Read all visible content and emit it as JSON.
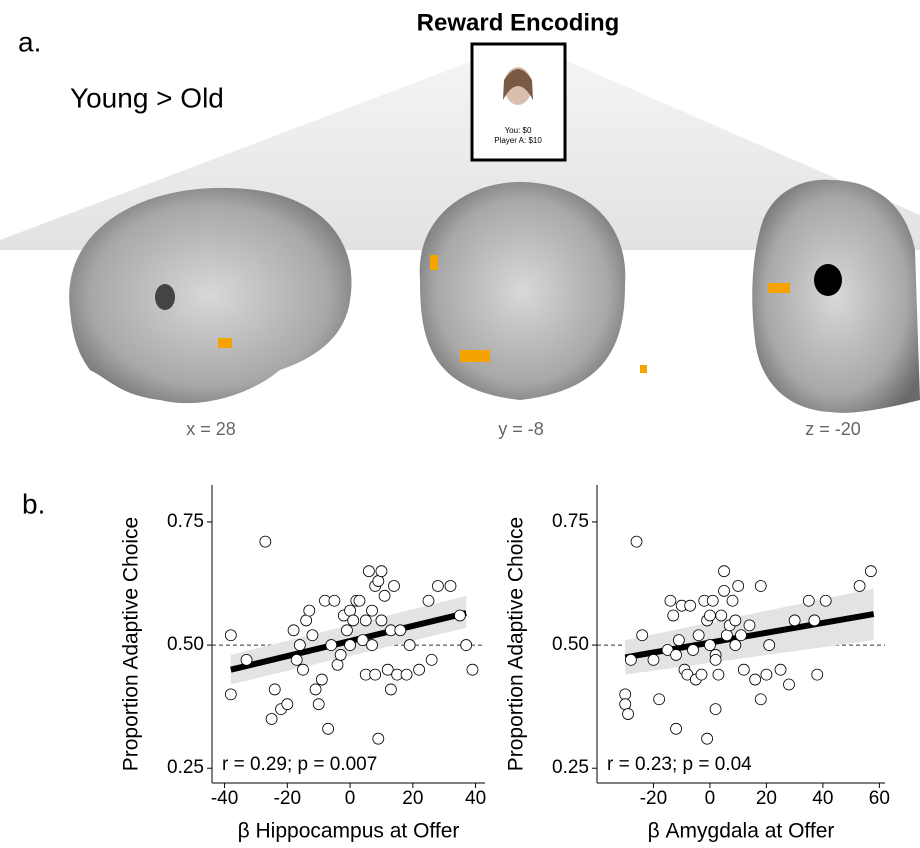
{
  "panel_a": {
    "label": "a.",
    "title": "Reward Encoding",
    "contrast": "Young > Old",
    "stimulus": {
      "line1": "You: $0",
      "line2": "Player A: $10"
    },
    "slices": [
      "x = 28",
      "y = -8",
      "z = -20"
    ]
  },
  "panel_b": {
    "label": "b."
  },
  "chart_data": [
    {
      "type": "scatter",
      "x_label": "β Hippocampus at Offer",
      "y_label": "Proportion Adaptive Choice",
      "annotation": "r = 0.29; p = 0.007",
      "x": [
        -38,
        -38,
        -33,
        -27,
        -25,
        -24,
        -22,
        -20,
        -18,
        -17,
        -16,
        -15,
        -14,
        -13,
        -12,
        -11,
        -10,
        -9,
        -8,
        -7,
        -6,
        -5,
        -4,
        -3,
        -2,
        -1,
        0,
        0,
        1,
        2,
        3,
        4,
        5,
        5,
        6,
        7,
        7,
        8,
        8,
        9,
        9,
        10,
        10,
        11,
        12,
        13,
        13,
        14,
        15,
        16,
        18,
        19,
        22,
        25,
        26,
        28,
        32,
        35,
        37,
        39
      ],
      "y": [
        0.52,
        0.4,
        0.47,
        0.71,
        0.35,
        0.41,
        0.37,
        0.38,
        0.53,
        0.47,
        0.5,
        0.45,
        0.55,
        0.57,
        0.52,
        0.41,
        0.38,
        0.43,
        0.59,
        0.33,
        0.5,
        0.59,
        0.46,
        0.48,
        0.56,
        0.53,
        0.5,
        0.57,
        0.55,
        0.59,
        0.59,
        0.51,
        0.55,
        0.44,
        0.65,
        0.57,
        0.5,
        0.62,
        0.44,
        0.31,
        0.63,
        0.65,
        0.55,
        0.6,
        0.45,
        0.41,
        0.53,
        0.62,
        0.44,
        0.53,
        0.44,
        0.5,
        0.45,
        0.59,
        0.47,
        0.62,
        0.62,
        0.56,
        0.5,
        0.45
      ],
      "fit": {
        "x": [
          -38,
          37
        ],
        "y": [
          0.45,
          0.565
        ],
        "ci_lower": [
          0.42,
          0.535
        ],
        "ci_upper": [
          0.48,
          0.6
        ]
      },
      "hline": 0.5,
      "xlim": [
        -44,
        43
      ],
      "ylim": [
        0.22,
        0.825
      ],
      "xticks": [
        -40,
        -20,
        0,
        20,
        40
      ],
      "yticks": [
        {
          "value": 0.25,
          "label": "0.25"
        },
        {
          "value": 0.5,
          "label": "0.50"
        },
        {
          "value": 0.75,
          "label": "0.75"
        }
      ]
    },
    {
      "type": "scatter",
      "x_label": "β Amygdala at Offer",
      "y_label": "Proportion Adaptive Choice",
      "annotation": "r = 0.23; p = 0.04",
      "x": [
        -30,
        -30,
        -29,
        -28,
        -26,
        -24,
        -20,
        -18,
        -15,
        -14,
        -13,
        -12,
        -11,
        -10,
        -9,
        -8,
        -7,
        -6,
        -5,
        -4,
        -3,
        -2,
        -1,
        0,
        0,
        1,
        2,
        2,
        3,
        4,
        5,
        5,
        6,
        7,
        8,
        9,
        9,
        10,
        11,
        12,
        14,
        16,
        18,
        18,
        20,
        21,
        25,
        28,
        30,
        35,
        37,
        38,
        41,
        53,
        57,
        -1,
        -12,
        2
      ],
      "y": [
        0.4,
        0.38,
        0.36,
        0.47,
        0.71,
        0.52,
        0.47,
        0.39,
        0.49,
        0.59,
        0.56,
        0.48,
        0.51,
        0.58,
        0.45,
        0.44,
        0.58,
        0.49,
        0.43,
        0.52,
        0.44,
        0.59,
        0.55,
        0.5,
        0.56,
        0.59,
        0.48,
        0.37,
        0.44,
        0.56,
        0.65,
        0.61,
        0.52,
        0.54,
        0.59,
        0.55,
        0.5,
        0.62,
        0.52,
        0.45,
        0.54,
        0.43,
        0.62,
        0.39,
        0.44,
        0.5,
        0.45,
        0.42,
        0.55,
        0.59,
        0.55,
        0.44,
        0.59,
        0.62,
        0.65,
        0.31,
        0.33,
        0.47
      ],
      "fit": {
        "x": [
          -30,
          58
        ],
        "y": [
          0.475,
          0.563
        ],
        "ci_lower": [
          0.44,
          0.51
        ],
        "ci_upper": [
          0.51,
          0.615
        ]
      },
      "hline": 0.5,
      "xlim": [
        -40,
        62
      ],
      "ylim": [
        0.22,
        0.825
      ],
      "xticks": [
        -20,
        0,
        20,
        40,
        60
      ],
      "yticks": [
        {
          "value": 0.25,
          "label": "0.25"
        },
        {
          "value": 0.5,
          "label": "0.50"
        },
        {
          "value": 0.75,
          "label": "0.75"
        }
      ]
    }
  ]
}
